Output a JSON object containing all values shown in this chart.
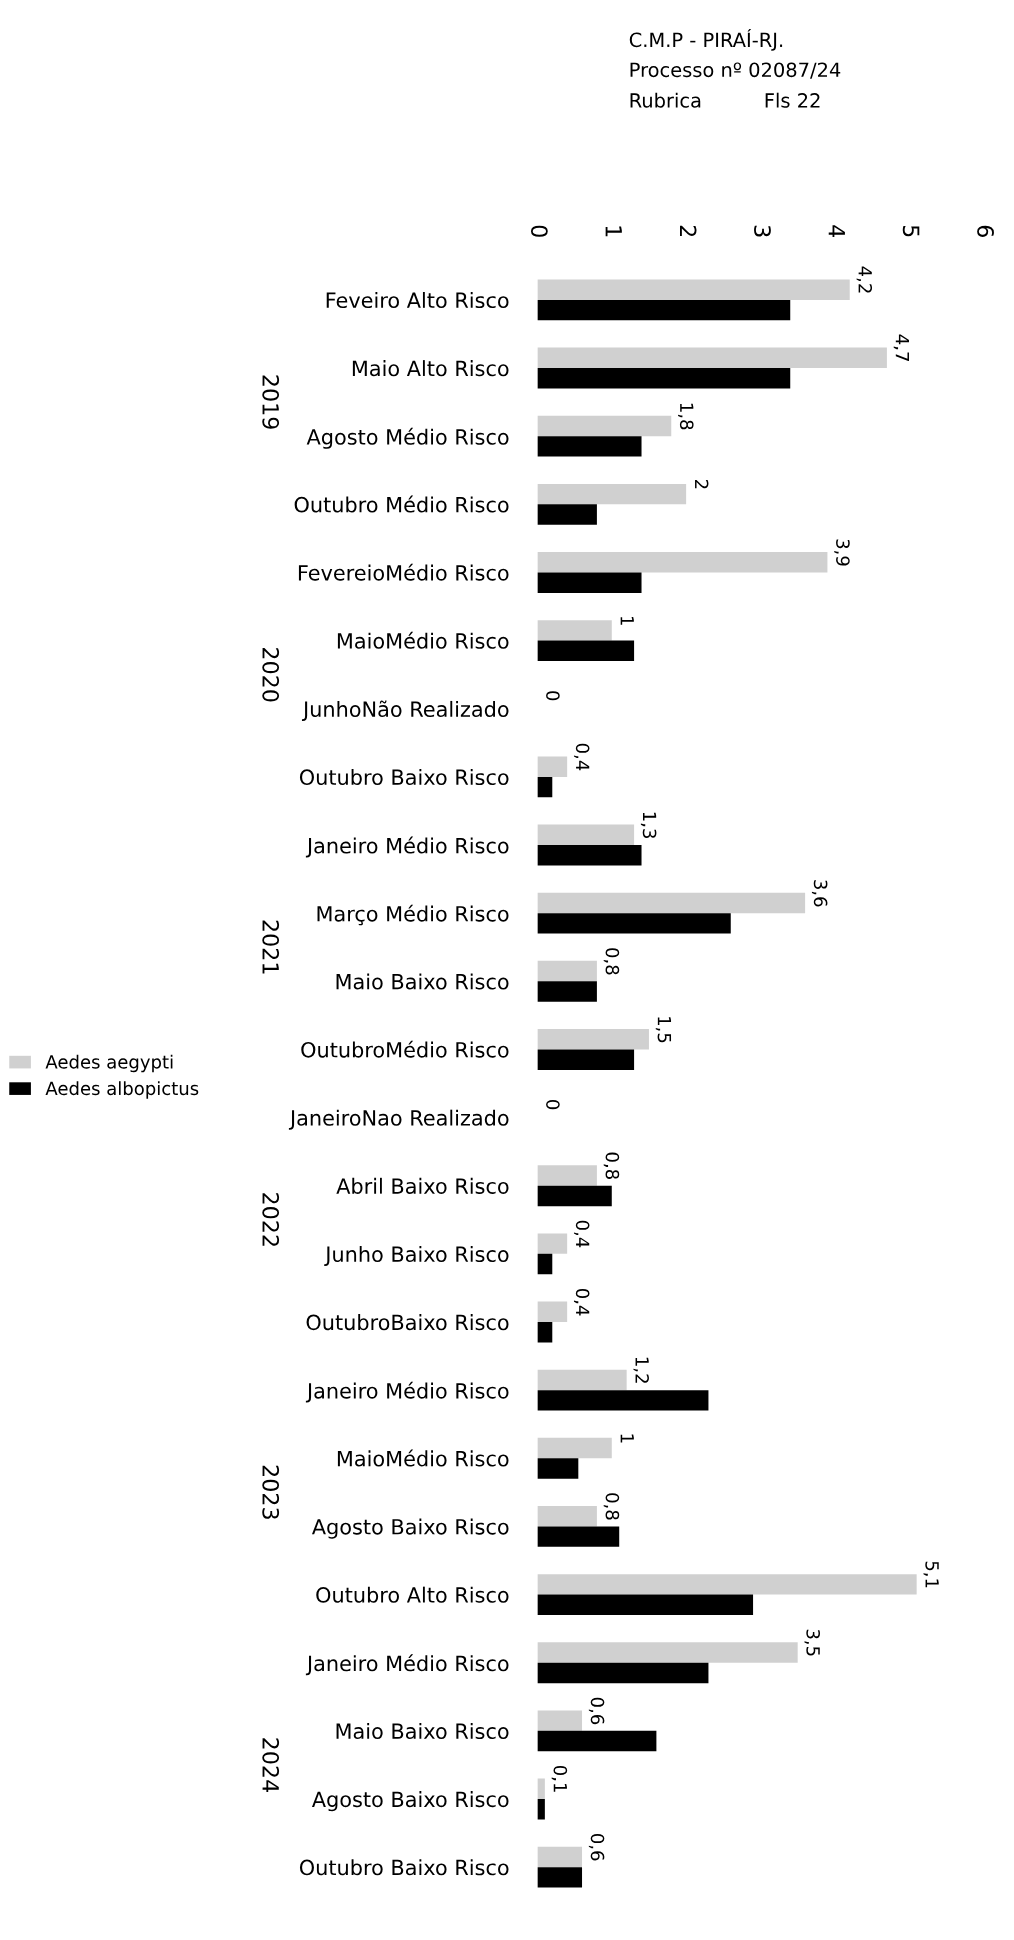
{
  "chart_data": {
    "type": "bar",
    "orientation": "horizontal",
    "title": "C.M.P - PIRAÍ-RJ.",
    "subtitle": "Processo nº 02087/24\nRubrica          Fls 22",
    "categories": [
      "Feveiro Alto Risco",
      "Maio Alto Risco",
      "Agosto Médio Risco",
      "Outubro Médio Risco",
      "FevereioMédio Risco",
      "MaioMédio Risco",
      "JunhoNão Realizado",
      "Outubro Baixo Risco",
      "Janeiro Médio Risco",
      "Março Médio Risco",
      "Maio Baixo Risco",
      "OutubroMédio Risco",
      "JaneiroNao Realizado",
      "Abril Baixo Risco",
      "Junho Baixo Risco",
      "OutubroBaixo Risco",
      "Janeiro Médio Risco",
      "MaioMédio Risco",
      "Agosto Baixo Risco",
      "Outubro Alto Risco",
      "Janeiro Médio Risco",
      "Maio Baixo Risco",
      "Agosto Baixo Risco",
      "Outubro Baixo Risco"
    ],
    "series": [
      {
        "name": "Aedes aegypti",
        "color": "#d0d0d0",
        "values": [
          4.2,
          4.7,
          1.8,
          2,
          3.9,
          1,
          0,
          0.4,
          1.3,
          3.6,
          0.8,
          1.5,
          0,
          0.8,
          0.4,
          0.4,
          1.2,
          1,
          0.8,
          5.1,
          3.5,
          0.6,
          0.1,
          0.6
        ],
        "value_labels": [
          "4,2",
          "4,7",
          "1,8",
          "2",
          "3,9",
          "1",
          "0",
          "0,4",
          "1,3",
          "3,6",
          "0,8",
          "1,5",
          "0",
          "0,8",
          "0,4",
          "0,4",
          "1,2",
          "1",
          "0,8",
          "5,1",
          "3,5",
          "0,6",
          "0,1",
          "0,6"
        ]
      },
      {
        "name": "Aedes albopictus",
        "color": "#000000",
        "values": [
          3.4,
          3.4,
          1.4,
          0.8,
          1.4,
          1.3,
          0,
          0.2,
          1.4,
          2.6,
          0.8,
          1.3,
          0,
          1.0,
          0.2,
          0.2,
          2.3,
          0.55,
          1.1,
          2.9,
          2.3,
          1.6,
          0.1,
          0.6
        ]
      }
    ],
    "xlim": [
      0,
      6
    ],
    "xticks": [
      0,
      1,
      2,
      3,
      4,
      5,
      6
    ],
    "grid": false,
    "legend": "left",
    "annotations": [
      "2019",
      "2020",
      "2021",
      "2022",
      "2023",
      "2024"
    ]
  }
}
